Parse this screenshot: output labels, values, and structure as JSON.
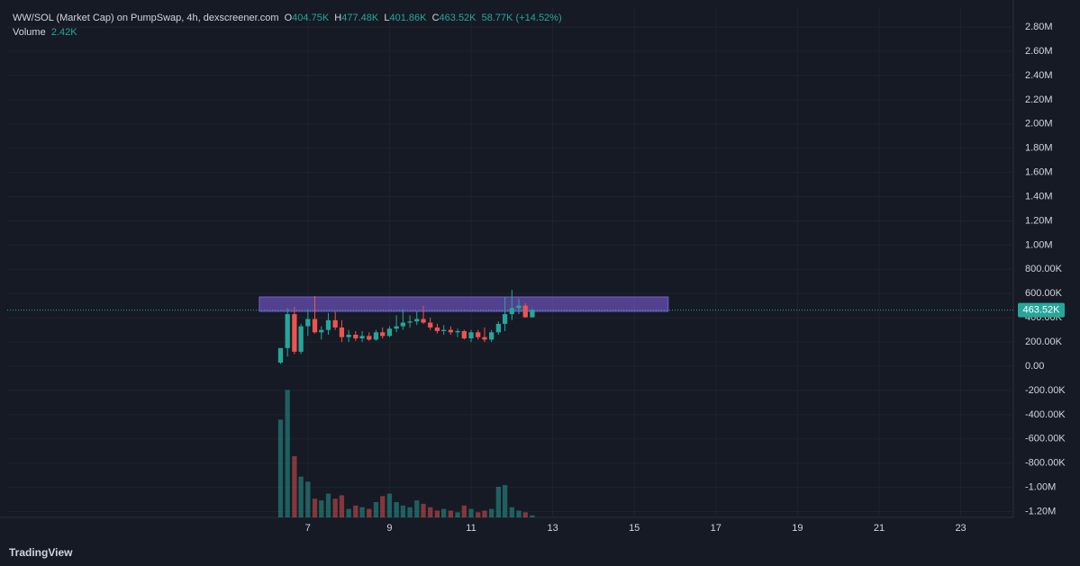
{
  "header": {
    "symbol": "WW/SOL (Market Cap) on PumpSwap, 4h, dexscreener.com",
    "open_label": "O",
    "open": "404.75K",
    "high_label": "H",
    "high": "477.48K",
    "low_label": "L",
    "low": "401.86K",
    "close_label": "C",
    "close": "463.52K",
    "change": "58.77K (+14.52%)",
    "volume_label": "Volume",
    "volume": "2.42K"
  },
  "chart_data": {
    "type": "candlestick",
    "x": [
      6.33,
      6.5,
      6.67,
      6.83,
      7,
      7.17,
      7.33,
      7.5,
      7.67,
      7.83,
      8,
      8.17,
      8.33,
      8.5,
      8.67,
      8.83,
      9,
      9.17,
      9.33,
      9.5,
      9.67,
      9.83,
      10,
      10.17,
      10.33,
      10.5,
      10.67,
      10.83,
      11,
      11.17,
      11.33,
      11.5,
      11.67,
      11.83,
      12,
      12.17,
      12.33,
      12.5
    ],
    "open": [
      30000,
      150000,
      430000,
      120000,
      330000,
      390000,
      280000,
      300000,
      380000,
      320000,
      240000,
      260000,
      230000,
      250000,
      220000,
      280000,
      250000,
      310000,
      330000,
      360000,
      370000,
      390000,
      360000,
      320000,
      290000,
      300000,
      280000,
      290000,
      230000,
      280000,
      240000,
      220000,
      280000,
      350000,
      430000,
      480000,
      500000,
      404750
    ],
    "high": [
      150000,
      480000,
      490000,
      350000,
      470000,
      580000,
      330000,
      440000,
      450000,
      380000,
      300000,
      290000,
      290000,
      280000,
      300000,
      320000,
      330000,
      420000,
      470000,
      420000,
      450000,
      500000,
      400000,
      350000,
      340000,
      330000,
      310000,
      300000,
      300000,
      300000,
      320000,
      300000,
      370000,
      570000,
      630000,
      560000,
      520000,
      477480
    ],
    "low": [
      20000,
      80000,
      100000,
      100000,
      250000,
      270000,
      220000,
      260000,
      300000,
      200000,
      200000,
      210000,
      200000,
      210000,
      210000,
      230000,
      240000,
      280000,
      300000,
      320000,
      340000,
      350000,
      300000,
      270000,
      260000,
      260000,
      240000,
      220000,
      200000,
      220000,
      200000,
      200000,
      260000,
      290000,
      380000,
      430000,
      400000,
      401860
    ],
    "close": [
      150000,
      430000,
      120000,
      330000,
      390000,
      280000,
      300000,
      380000,
      320000,
      240000,
      260000,
      230000,
      250000,
      220000,
      280000,
      250000,
      310000,
      330000,
      360000,
      370000,
      390000,
      360000,
      320000,
      290000,
      300000,
      280000,
      290000,
      230000,
      280000,
      240000,
      220000,
      280000,
      350000,
      430000,
      480000,
      500000,
      404750,
      463520
    ],
    "volume": [
      115000,
      150000,
      72000,
      48000,
      42000,
      22000,
      20000,
      28000,
      22000,
      26000,
      10000,
      14000,
      12000,
      10000,
      18000,
      25000,
      28000,
      18000,
      14000,
      12000,
      20000,
      16000,
      12000,
      8000,
      10000,
      8000,
      6000,
      14000,
      10000,
      6000,
      8000,
      10000,
      36000,
      38000,
      12000,
      8000,
      6000,
      2420
    ],
    "up_color": "#26a69a",
    "down_color": "#ef5350",
    "xlim": [
      -0.37,
      24.29
    ],
    "xticks": [
      7,
      9,
      11,
      13,
      15,
      17,
      19,
      21,
      23
    ],
    "ylim": [
      -1248000,
      2964000
    ],
    "yticks": [
      {
        "value": 2800000,
        "label": "2.80M"
      },
      {
        "value": 2600000,
        "label": "2.60M"
      },
      {
        "value": 2400000,
        "label": "2.40M"
      },
      {
        "value": 2200000,
        "label": "2.20M"
      },
      {
        "value": 2000000,
        "label": "2.00M"
      },
      {
        "value": 1800000,
        "label": "1.80M"
      },
      {
        "value": 1600000,
        "label": "1.60M"
      },
      {
        "value": 1400000,
        "label": "1.40M"
      },
      {
        "value": 1200000,
        "label": "1.20M"
      },
      {
        "value": 1000000,
        "label": "1.00M"
      },
      {
        "value": 800000,
        "label": "800.00K"
      },
      {
        "value": 600000,
        "label": "600.00K"
      },
      {
        "value": 400000,
        "label": "400.00K"
      },
      {
        "value": 200000,
        "label": "200.00K"
      },
      {
        "value": 0,
        "label": "0.00"
      },
      {
        "value": -200000,
        "label": "-200.00K"
      },
      {
        "value": -400000,
        "label": "-400.00K"
      },
      {
        "value": -600000,
        "label": "-600.00K"
      },
      {
        "value": -800000,
        "label": "-800.00K"
      },
      {
        "value": -1000000,
        "label": "-1.00M"
      },
      {
        "value": -1200000,
        "label": "-1.20M"
      }
    ],
    "vlim": [
      0,
      600000
    ],
    "grid": true,
    "zone": {
      "x": [
        5.81,
        15.83
      ],
      "y": [
        453000,
        572000
      ],
      "color": "#7b5cd6"
    },
    "last_price": {
      "value": 463520,
      "label": "463.52K"
    }
  },
  "branding": "TradingView"
}
